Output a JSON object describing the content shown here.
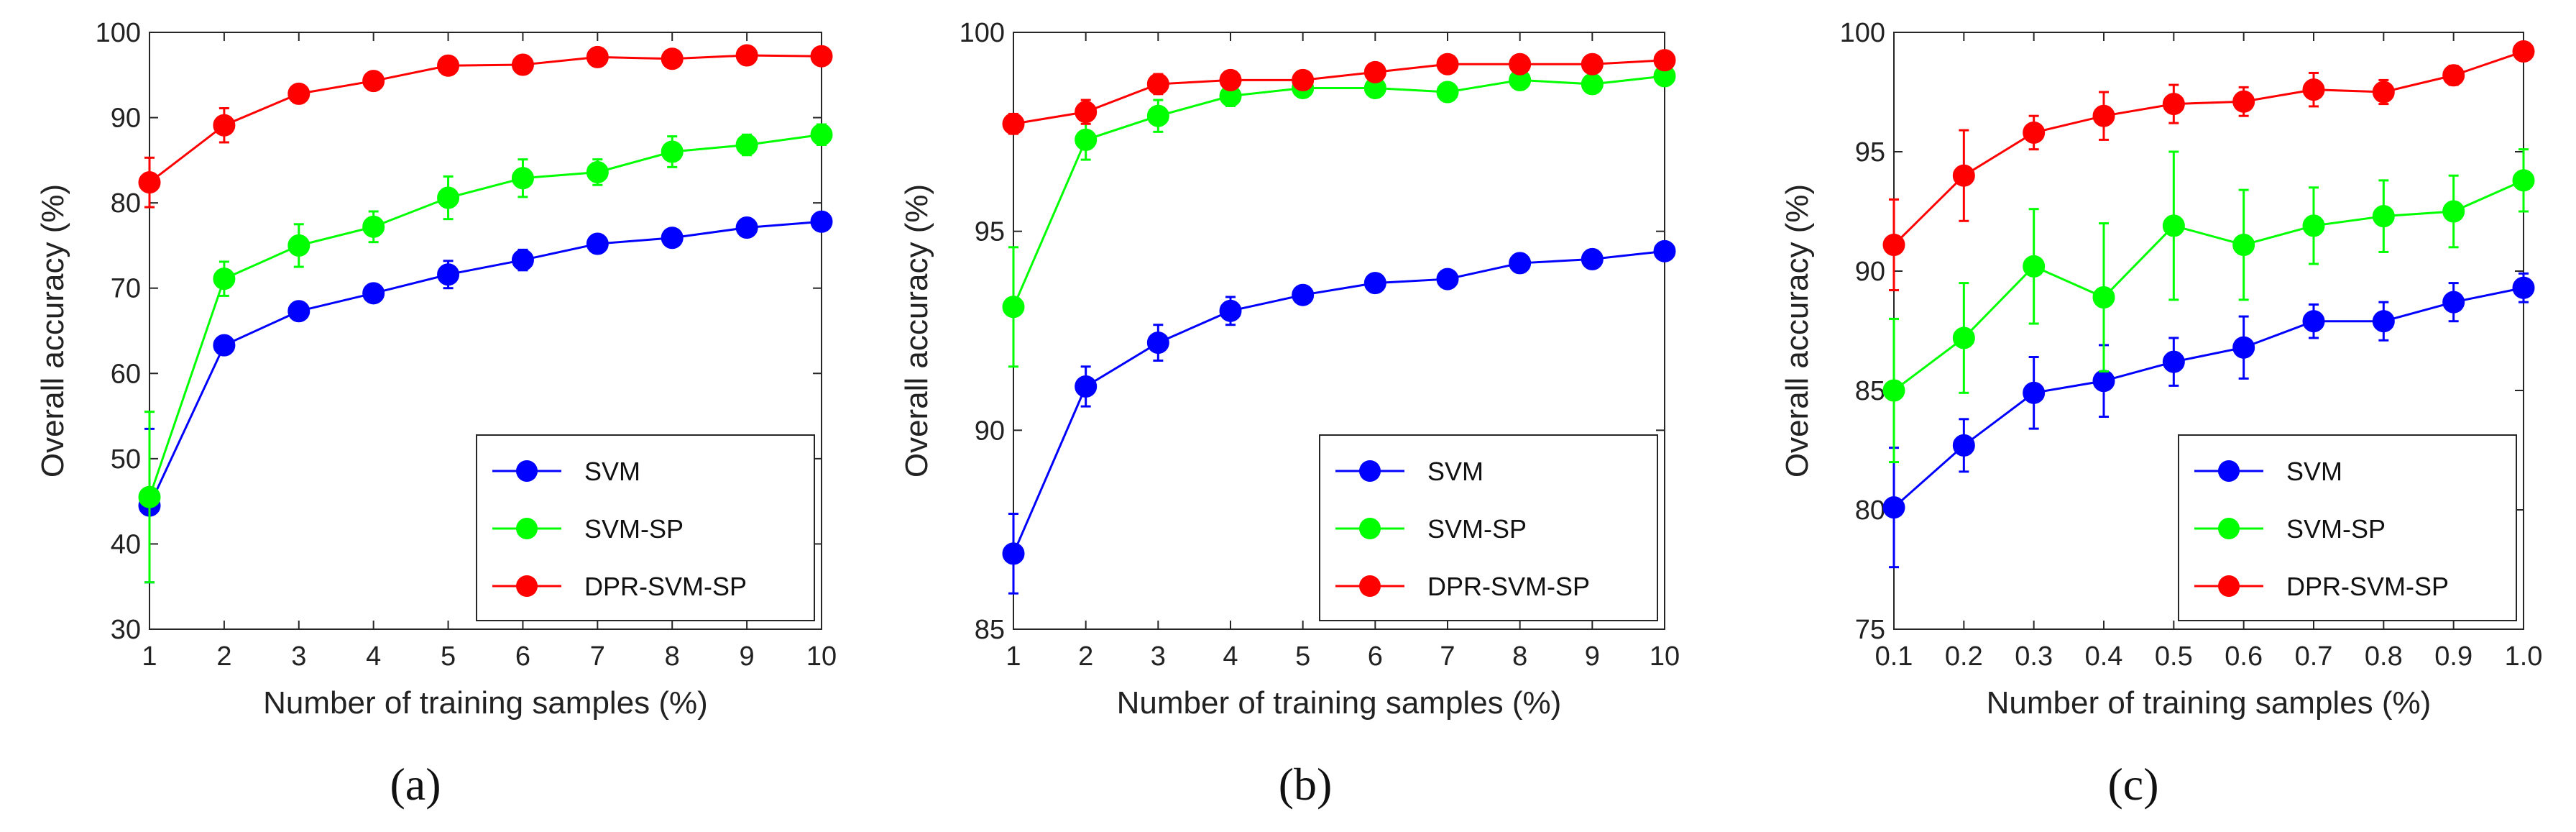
{
  "colors": {
    "SVM": "#0000ff",
    "SVM-SP": "#00ff00",
    "DPR-SVM-SP": "#ff0000"
  },
  "chart_data": [
    {
      "type": "line",
      "caption": "(a)",
      "xlabel": "Number of training samples (%)",
      "ylabel": "Overall accuracy (%)",
      "x": [
        1,
        2,
        3,
        4,
        5,
        6,
        7,
        8,
        9,
        10
      ],
      "x_tick_labels": [
        "1",
        "2",
        "3",
        "4",
        "5",
        "6",
        "7",
        "8",
        "9",
        "10"
      ],
      "xlim": [
        1,
        10
      ],
      "ylim": [
        30,
        100
      ],
      "y_ticks": [
        30,
        40,
        50,
        60,
        70,
        80,
        90,
        100
      ],
      "y_tick_labels": [
        "30",
        "40",
        "50",
        "60",
        "70",
        "80",
        "90",
        "100"
      ],
      "grid": false,
      "legend_position": "bottom-right",
      "series": [
        {
          "name": "SVM",
          "values": [
            44.5,
            63.3,
            67.3,
            69.4,
            71.6,
            73.3,
            75.2,
            75.9,
            77.1,
            77.8
          ],
          "errors": [
            9.0,
            1.0,
            1.0,
            1.0,
            1.6,
            1.2,
            1.0,
            1.0,
            1.0,
            1.0
          ]
        },
        {
          "name": "SVM-SP",
          "values": [
            45.5,
            71.1,
            75.0,
            77.2,
            80.6,
            82.9,
            83.6,
            86.0,
            86.8,
            88.0
          ],
          "errors": [
            10.0,
            2.0,
            2.5,
            1.8,
            2.5,
            2.2,
            1.5,
            1.8,
            1.2,
            1.2
          ]
        },
        {
          "name": "DPR-SVM-SP",
          "values": [
            82.4,
            89.1,
            92.8,
            94.3,
            96.1,
            96.2,
            97.1,
            96.9,
            97.3,
            97.2
          ],
          "errors": [
            2.9,
            2.0,
            0.8,
            0.8,
            0.6,
            0.6,
            0.6,
            0.5,
            0.5,
            0.4
          ]
        }
      ]
    },
    {
      "type": "line",
      "caption": "(b)",
      "xlabel": "Number of training samples (%)",
      "ylabel": "Overall accuracy (%)",
      "x": [
        1,
        2,
        3,
        4,
        5,
        6,
        7,
        8,
        9,
        10
      ],
      "x_tick_labels": [
        "1",
        "2",
        "3",
        "4",
        "5",
        "6",
        "7",
        "8",
        "9",
        "10"
      ],
      "xlim": [
        1,
        10
      ],
      "ylim": [
        85,
        100
      ],
      "y_ticks": [
        85,
        90,
        95,
        100
      ],
      "y_tick_labels": [
        "85",
        "90",
        "95",
        "100"
      ],
      "grid": false,
      "legend_position": "bottom-right",
      "series": [
        {
          "name": "SVM",
          "values": [
            86.9,
            91.1,
            92.2,
            93.0,
            93.4,
            93.7,
            93.8,
            94.2,
            94.3,
            94.5
          ],
          "errors": [
            1.0,
            0.5,
            0.45,
            0.35,
            0.2,
            0.2,
            0.2,
            0.15,
            0.15,
            0.15
          ]
        },
        {
          "name": "SVM-SP",
          "values": [
            93.1,
            97.3,
            97.9,
            98.4,
            98.6,
            98.6,
            98.5,
            98.8,
            98.7,
            98.9
          ],
          "errors": [
            1.5,
            0.5,
            0.4,
            0.25,
            0.2,
            0.2,
            0.15,
            0.15,
            0.15,
            0.15
          ]
        },
        {
          "name": "DPR-SVM-SP",
          "values": [
            97.7,
            98.0,
            98.7,
            98.8,
            98.8,
            99.0,
            99.2,
            99.2,
            99.2,
            99.3
          ],
          "errors": [
            0.25,
            0.3,
            0.25,
            0.15,
            0.15,
            0.1,
            0.1,
            0.1,
            0.1,
            0.1
          ]
        }
      ]
    },
    {
      "type": "line",
      "caption": "(c)",
      "xlabel": "Number of training samples (%)",
      "ylabel": "Overall accuracy (%)",
      "x": [
        0.1,
        0.2,
        0.3,
        0.4,
        0.5,
        0.6,
        0.7,
        0.8,
        0.9,
        1.0
      ],
      "x_tick_labels": [
        "0.1",
        "0.2",
        "0.3",
        "0.4",
        "0.5",
        "0.6",
        "0.7",
        "0.8",
        "0.9",
        "1.0"
      ],
      "xlim": [
        0.1,
        1.0
      ],
      "ylim": [
        75,
        100
      ],
      "y_ticks": [
        75,
        80,
        85,
        90,
        95,
        100
      ],
      "y_tick_labels": [
        "75",
        "80",
        "85",
        "90",
        "95",
        "100"
      ],
      "grid": false,
      "legend_position": "bottom-right",
      "series": [
        {
          "name": "SVM",
          "values": [
            80.1,
            82.7,
            84.9,
            85.4,
            86.2,
            86.8,
            87.9,
            87.9,
            88.7,
            89.3
          ],
          "errors": [
            2.5,
            1.1,
            1.5,
            1.5,
            1.0,
            1.3,
            0.7,
            0.8,
            0.8,
            0.6
          ]
        },
        {
          "name": "SVM-SP",
          "values": [
            85.0,
            87.2,
            90.2,
            88.9,
            91.9,
            91.1,
            91.9,
            92.3,
            92.5,
            93.8
          ],
          "errors": [
            3.0,
            2.3,
            2.4,
            3.1,
            3.1,
            2.3,
            1.6,
            1.5,
            1.5,
            1.3
          ]
        },
        {
          "name": "DPR-SVM-SP",
          "values": [
            91.1,
            94.0,
            95.8,
            96.5,
            97.0,
            97.1,
            97.6,
            97.5,
            98.2,
            99.2
          ],
          "errors": [
            1.9,
            1.9,
            0.7,
            1.0,
            0.8,
            0.6,
            0.7,
            0.5,
            0.4,
            0.3
          ]
        }
      ]
    }
  ]
}
